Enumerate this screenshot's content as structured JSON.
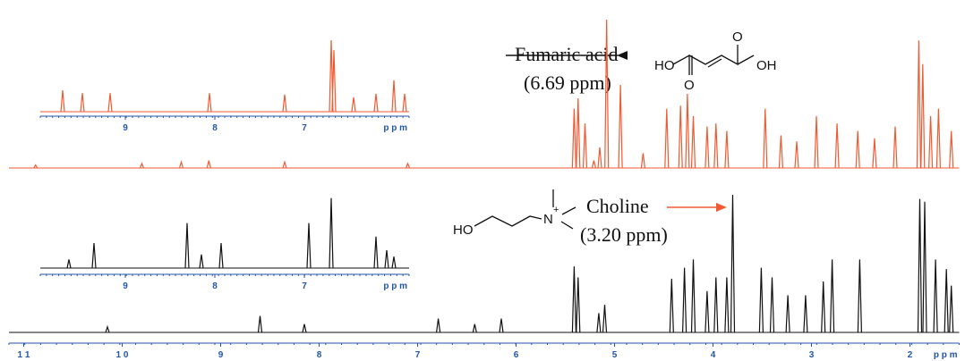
{
  "chart_data": [
    {
      "type": "spectrum",
      "color": "#f05a32",
      "xlim": [
        11.15,
        1.5
      ],
      "ylim": [
        0,
        100
      ],
      "x": [
        5.08,
        5.41,
        5.37,
        5.3,
        5.15,
        5.21,
        4.94,
        4.71,
        4.47,
        4.33,
        4.26,
        4.2,
        4.06,
        3.97,
        3.86,
        3.47,
        3.31,
        3.15,
        2.95,
        2.74,
        2.53,
        2.36,
        2.15,
        1.91,
        1.87,
        1.79,
        1.71,
        1.58,
        10.88,
        9.8,
        9.4,
        9.12,
        8.35,
        7.1
      ],
      "values": [
        100,
        40,
        47,
        30,
        14,
        5,
        56,
        10,
        40,
        42,
        50,
        35,
        28,
        30,
        25,
        40,
        22,
        18,
        35,
        30,
        25,
        20,
        28,
        86,
        70,
        35,
        40,
        25,
        2,
        3,
        4,
        5,
        4,
        3
      ]
    },
    {
      "type": "spectrum",
      "color": "#111111",
      "xlim": [
        11.15,
        1.5
      ],
      "ylim": [
        0,
        100
      ],
      "xticks": [
        {
          "value": 11,
          "label": "1 1"
        },
        {
          "value": 10,
          "label": "1 0"
        },
        9,
        8,
        7,
        6,
        5,
        4,
        3,
        2
      ],
      "xlabel": "p p m",
      "x": [
        3.8,
        5.41,
        5.37,
        5.16,
        5.1,
        6.15,
        6.79,
        6.42,
        8.6,
        8.15,
        10.15,
        4.42,
        4.29,
        4.2,
        4.06,
        3.97,
        3.86,
        3.51,
        3.4,
        3.24,
        3.06,
        2.88,
        2.79,
        2.51,
        1.9,
        1.85,
        1.74,
        1.63,
        1.58
      ],
      "values": [
        100,
        48,
        40,
        14,
        20,
        10,
        10,
        6,
        12,
        6,
        4,
        39,
        47,
        53,
        30,
        40,
        40,
        47,
        40,
        27,
        27,
        37,
        53,
        53,
        97,
        95,
        53,
        46,
        34
      ]
    },
    {
      "type": "spectrum",
      "color": "#f05a32",
      "xlim": [
        9.95,
        5.83
      ],
      "ylim": [
        0,
        100
      ],
      "xticks": [
        9,
        8,
        7
      ],
      "xlabel": "p p m",
      "x": [
        9.7,
        9.48,
        9.17,
        8.06,
        7.22,
        6.7,
        6.67,
        6.45,
        6.2,
        6.0,
        5.88
      ],
      "values": [
        30,
        26,
        26,
        26,
        24,
        100,
        86,
        20,
        25,
        44,
        25
      ]
    },
    {
      "type": "spectrum",
      "color": "#111111",
      "xlim": [
        9.95,
        5.83
      ],
      "ylim": [
        0,
        100
      ],
      "xticks": [
        9,
        8,
        7
      ],
      "xlabel": "p p m",
      "x": [
        9.63,
        9.35,
        8.31,
        8.15,
        7.93,
        6.95,
        6.7,
        6.2,
        6.08,
        6.0
      ],
      "values": [
        12,
        35,
        63,
        19,
        35,
        63,
        98,
        44,
        25,
        16
      ]
    }
  ],
  "annotations": {
    "fumaric": {
      "name": "Fumaric acid",
      "shift": "(6.69 ppm)",
      "atoms": [
        "HO",
        "O",
        "O",
        "OH"
      ]
    },
    "choline": {
      "name": "Choline",
      "shift": "(3.20 ppm)",
      "atoms": [
        "HO",
        "N",
        "+"
      ]
    }
  }
}
